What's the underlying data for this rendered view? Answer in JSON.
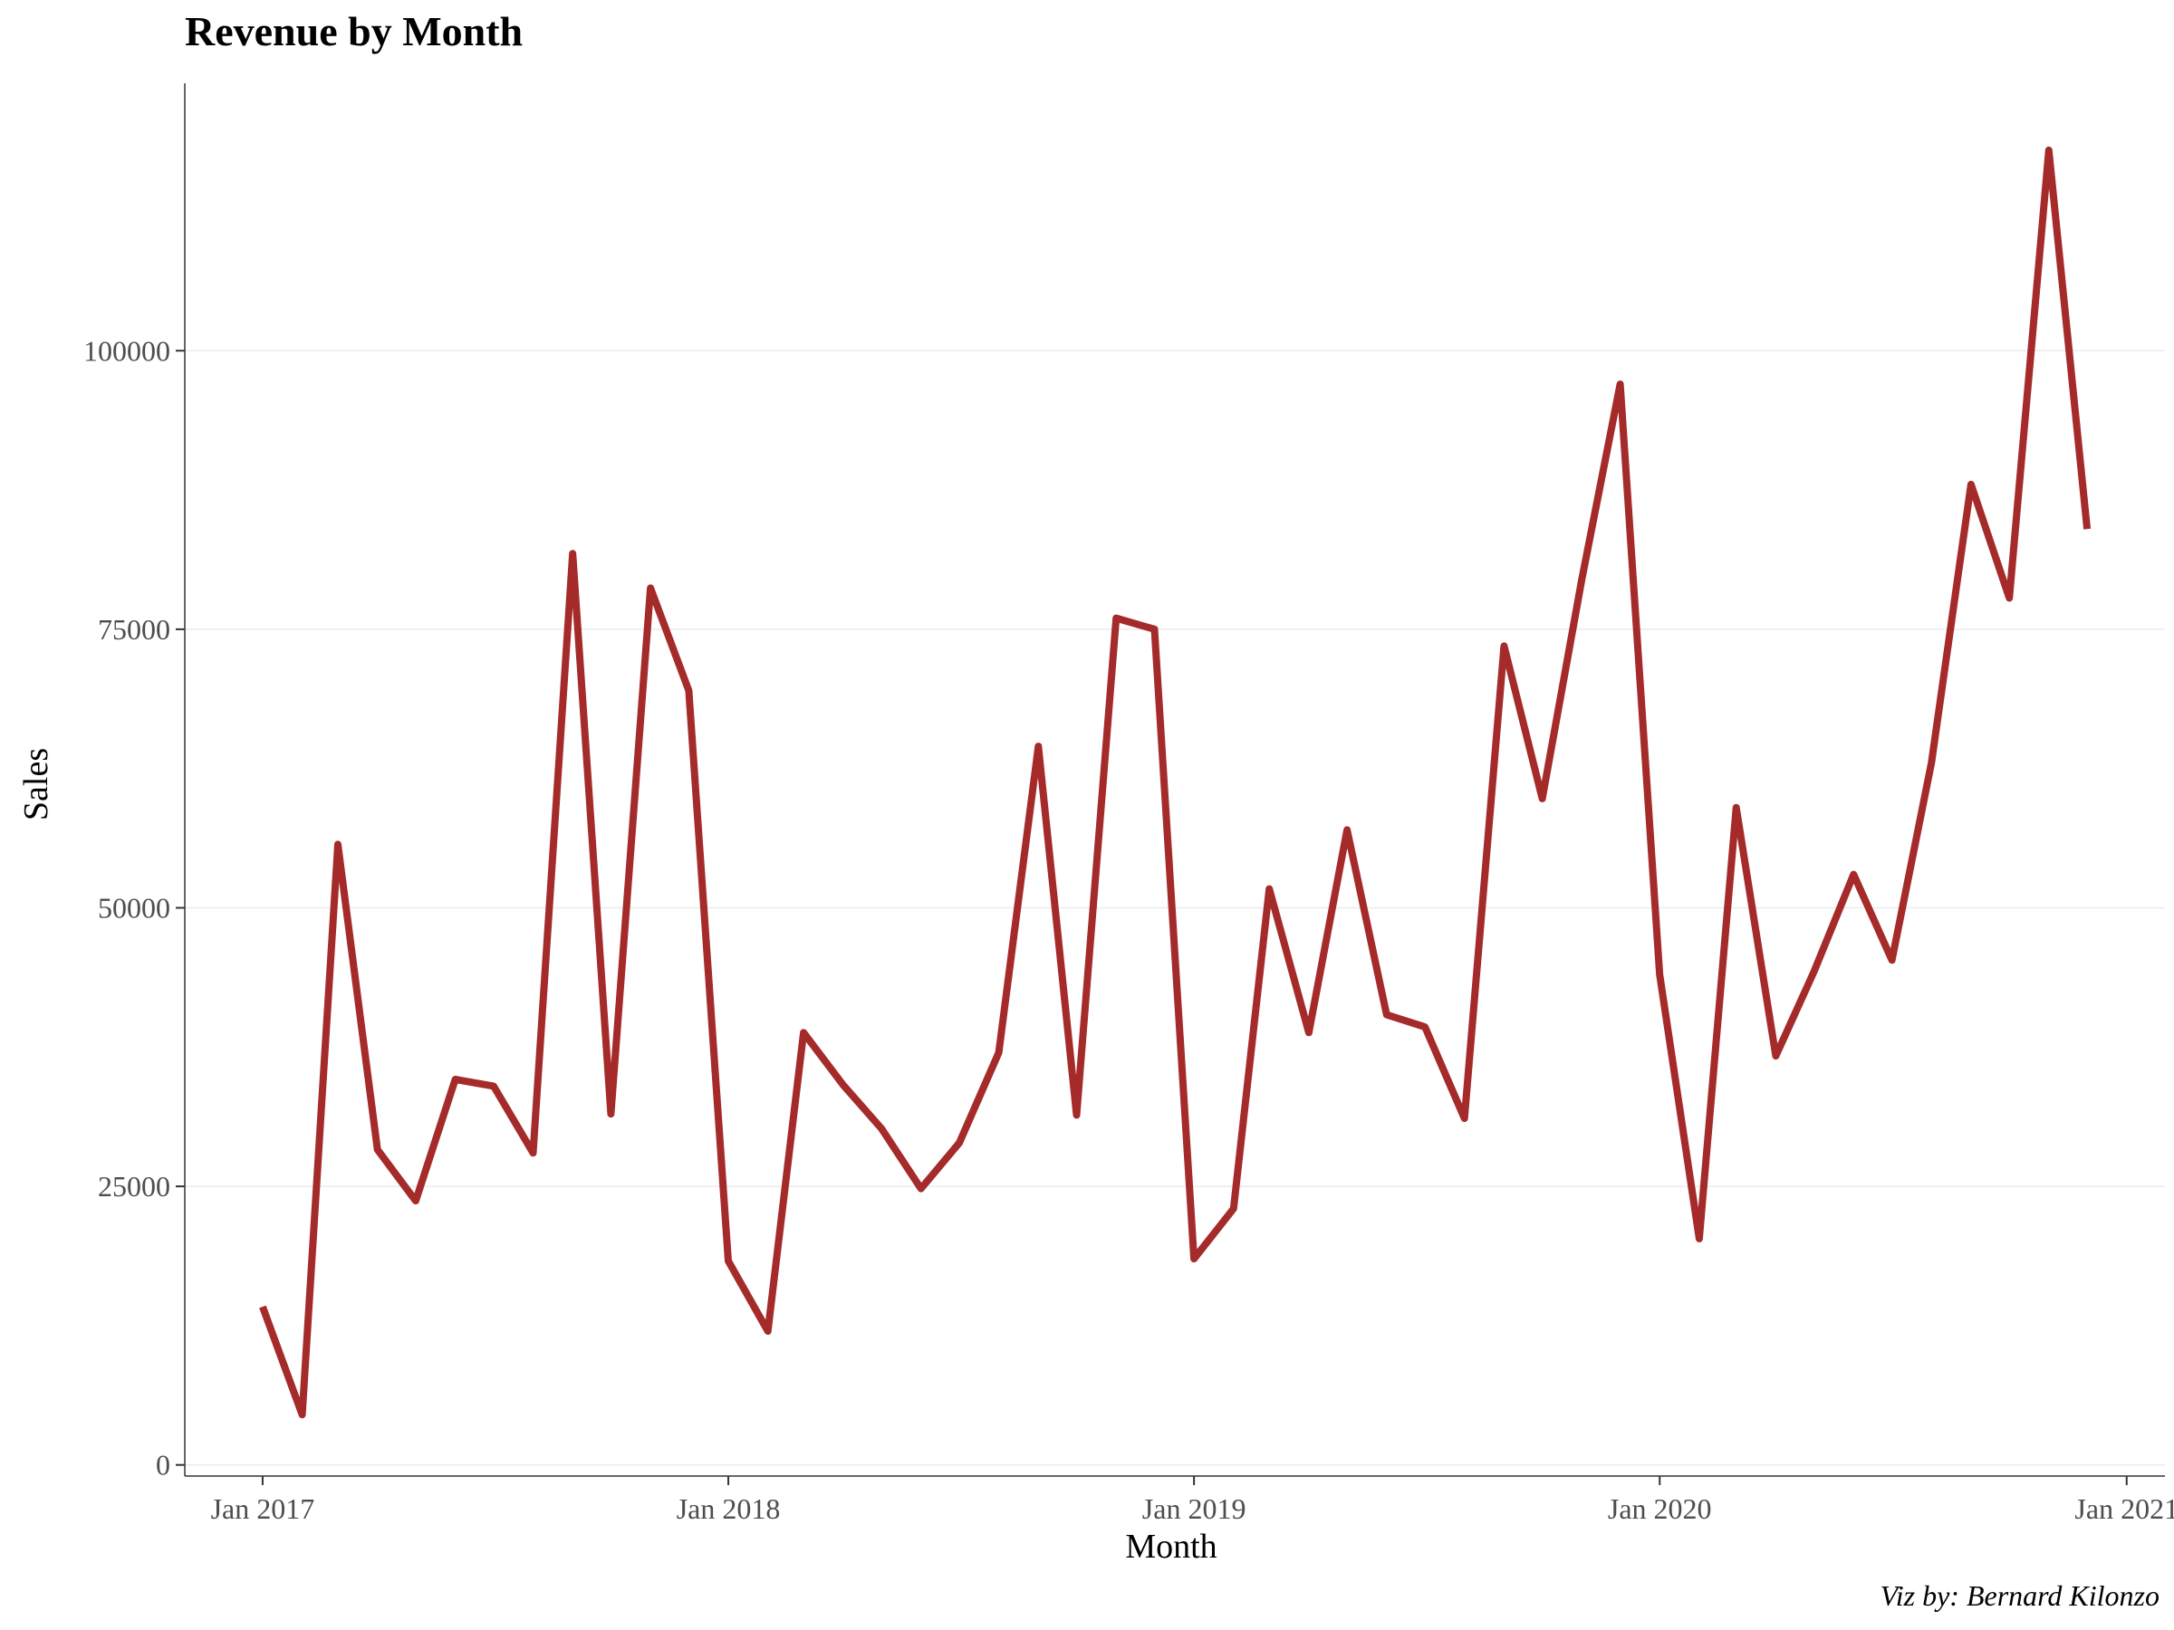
{
  "chart_data": {
    "type": "line",
    "title": "Revenue by Month",
    "xlabel": "Month",
    "ylabel": "Sales",
    "caption": "Viz by: Bernard Kilonzo",
    "ylim": [
      -1000,
      124000
    ],
    "xlim": [
      "2016-11-01",
      "2021-01-31"
    ],
    "y_ticks": [
      0,
      25000,
      50000,
      75000,
      100000
    ],
    "y_tick_labels": [
      "0",
      "25000",
      "50000",
      "75000",
      "100000"
    ],
    "x_ticks": [
      "2017-01-01",
      "2018-01-01",
      "2019-01-01",
      "2020-01-01",
      "2021-01-01"
    ],
    "x_tick_labels": [
      "Jan 2017",
      "Jan 2018",
      "Jan 2019",
      "Jan 2020",
      "Jan 2021"
    ],
    "grid": "horizontal major lines",
    "legend": "none",
    "line_color": "#A52A2A",
    "series": [
      {
        "x": [
          "2017-01-01",
          "2017-02-01",
          "2017-03-01",
          "2017-04-01",
          "2017-05-01",
          "2017-06-01",
          "2017-07-01",
          "2017-08-01",
          "2017-09-01",
          "2017-10-01",
          "2017-11-01",
          "2017-12-01",
          "2018-01-01",
          "2018-02-01",
          "2018-03-01",
          "2018-04-01",
          "2018-05-01",
          "2018-06-01",
          "2018-07-01",
          "2018-08-01",
          "2018-09-01",
          "2018-10-01",
          "2018-11-01",
          "2018-12-01",
          "2019-01-01",
          "2019-02-01",
          "2019-03-01",
          "2019-04-01",
          "2019-05-01",
          "2019-06-01",
          "2019-07-01",
          "2019-08-01",
          "2019-09-01",
          "2019-10-01",
          "2019-11-01",
          "2019-12-01",
          "2020-01-01",
          "2020-02-01",
          "2020-03-01",
          "2020-04-01",
          "2020-05-01",
          "2020-06-01",
          "2020-07-01",
          "2020-08-01",
          "2020-09-01",
          "2020-10-01",
          "2020-11-01",
          "2020-12-01"
        ],
        "values": [
          14200,
          4500,
          55700,
          28300,
          23700,
          34600,
          34000,
          28000,
          81800,
          31500,
          78700,
          69500,
          18300,
          12000,
          38800,
          34100,
          30200,
          24800,
          28900,
          37000,
          64500,
          31400,
          76000,
          75000,
          18500,
          23000,
          51700,
          38800,
          57000,
          40400,
          39300,
          31100,
          73500,
          59800,
          79500,
          97000,
          44000,
          20300,
          59000,
          36700,
          44300,
          53000,
          45300,
          63000,
          88000,
          77800,
          118000,
          84000
        ]
      }
    ]
  }
}
